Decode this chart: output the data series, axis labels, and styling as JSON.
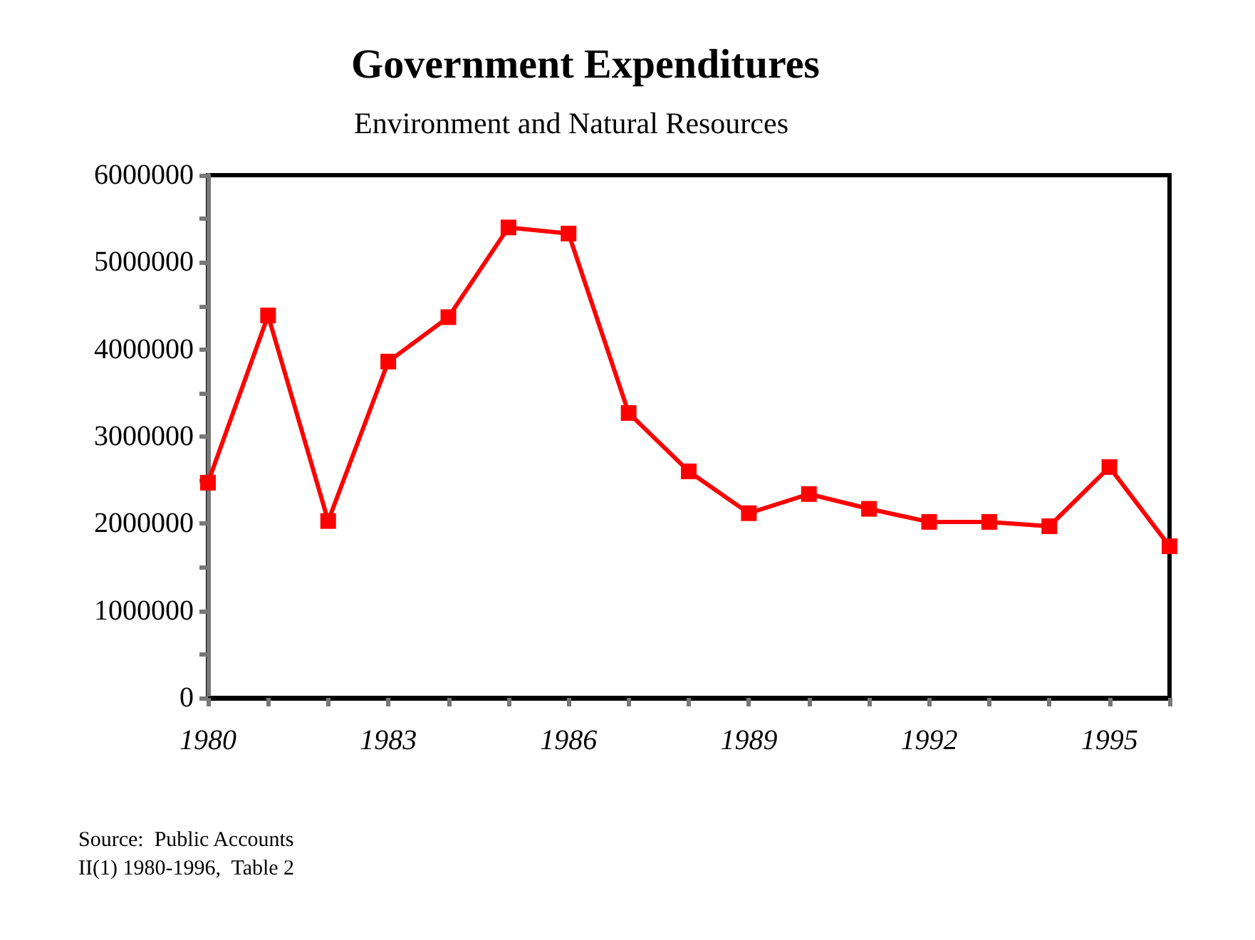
{
  "chart_data": {
    "type": "line",
    "title": "Government Expenditures",
    "subtitle": "Environment and Natural Resources",
    "x": [
      1980,
      1981,
      1982,
      1983,
      1984,
      1985,
      1986,
      1987,
      1988,
      1989,
      1990,
      1991,
      1992,
      1993,
      1994,
      1995,
      1996
    ],
    "series": [
      {
        "color": "#ff0000",
        "values": [
          2470000,
          4390000,
          2030000,
          3860000,
          4370000,
          5400000,
          5330000,
          3270000,
          2600000,
          2120000,
          2340000,
          2170000,
          2020000,
          2020000,
          1970000,
          2650000,
          1740000
        ]
      }
    ],
    "xlim": [
      1980,
      1996
    ],
    "xticks": [
      1980,
      {
        "value": 1981,
        "label": null
      },
      {
        "value": 1982,
        "label": null
      },
      1983,
      {
        "value": 1984,
        "label": null
      },
      {
        "value": 1985,
        "label": null
      },
      1986,
      {
        "value": 1987,
        "label": null
      },
      {
        "value": 1988,
        "label": null
      },
      1989,
      {
        "value": 1990,
        "label": null
      },
      {
        "value": 1991,
        "label": null
      },
      1992,
      {
        "value": 1993,
        "label": null
      },
      {
        "value": 1994,
        "label": null
      },
      1995,
      {
        "value": 1996,
        "label": null
      }
    ],
    "ylim": [
      0,
      6000000
    ],
    "yticks": [
      0,
      {
        "value": 500000,
        "label": null
      },
      1000000,
      {
        "value": 1500000,
        "label": null
      },
      2000000,
      {
        "value": 2500000,
        "label": null
      },
      3000000,
      {
        "value": 3500000,
        "label": null
      },
      4000000,
      {
        "value": 4500000,
        "label": null
      },
      5000000,
      {
        "value": 5500000,
        "label": null
      },
      6000000
    ],
    "grid": false,
    "marker": "square",
    "line_style": "solid",
    "annotations": [
      "Source:  Public Accounts\nII(1) 1980-1996,  Table 2"
    ]
  }
}
